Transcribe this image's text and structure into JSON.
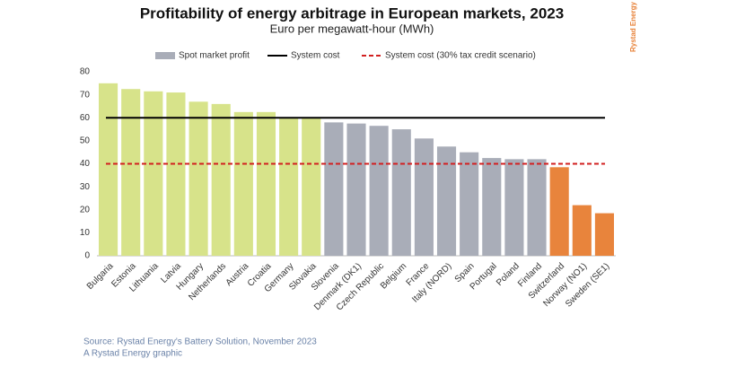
{
  "chart_data": {
    "type": "bar",
    "title": "Profitability of energy arbitrage in European markets, 2023",
    "subtitle": "Euro per megawatt-hour (MWh)",
    "categories": [
      "Bulgaria",
      "Estonia",
      "Lithuania",
      "Latvia",
      "Hungary",
      "Netherlands",
      "Austria",
      "Croatia",
      "Germany",
      "Slovakia",
      "Slovenia",
      "Denmark (DK1)",
      "Czech Republic",
      "Belgium",
      "France",
      "Italy (NORD)",
      "Spain",
      "Portugal",
      "Poland",
      "Finland",
      "Switzerland",
      "Norway (NO1)",
      "Sweden (SE1)"
    ],
    "series": [
      {
        "name": "Spot market profit",
        "color": "#a9adb8",
        "values": [
          75,
          72.5,
          71.5,
          71,
          67,
          66,
          62.5,
          62.5,
          60,
          60,
          58,
          57.5,
          56.5,
          55,
          51,
          47.5,
          45,
          42.5,
          42,
          42,
          38.5,
          22,
          18.5
        ]
      }
    ],
    "bar_colors": [
      "#d7e38a",
      "#d7e38a",
      "#d7e38a",
      "#d7e38a",
      "#d7e38a",
      "#d7e38a",
      "#d7e38a",
      "#d7e38a",
      "#d7e38a",
      "#d7e38a",
      "#a9adb8",
      "#a9adb8",
      "#a9adb8",
      "#a9adb8",
      "#a9adb8",
      "#a9adb8",
      "#a9adb8",
      "#a9adb8",
      "#a9adb8",
      "#a9adb8",
      "#e8843c",
      "#e8843c",
      "#e8843c"
    ],
    "reference_lines": [
      {
        "name": "System cost",
        "value": 60,
        "color": "#000000",
        "style": "solid"
      },
      {
        "name": "System cost (30% tax credit scenario)",
        "value": 40,
        "color": "#d22020",
        "style": "dashed"
      }
    ],
    "ylim": [
      0,
      80
    ],
    "yticks": [
      0,
      10,
      20,
      30,
      40,
      50,
      60,
      70,
      80
    ],
    "source": "Source: Rystad Energy's Battery Solution, November 2023",
    "credit": "A Rystad Energy graphic",
    "brand": "Rystad Energy"
  }
}
